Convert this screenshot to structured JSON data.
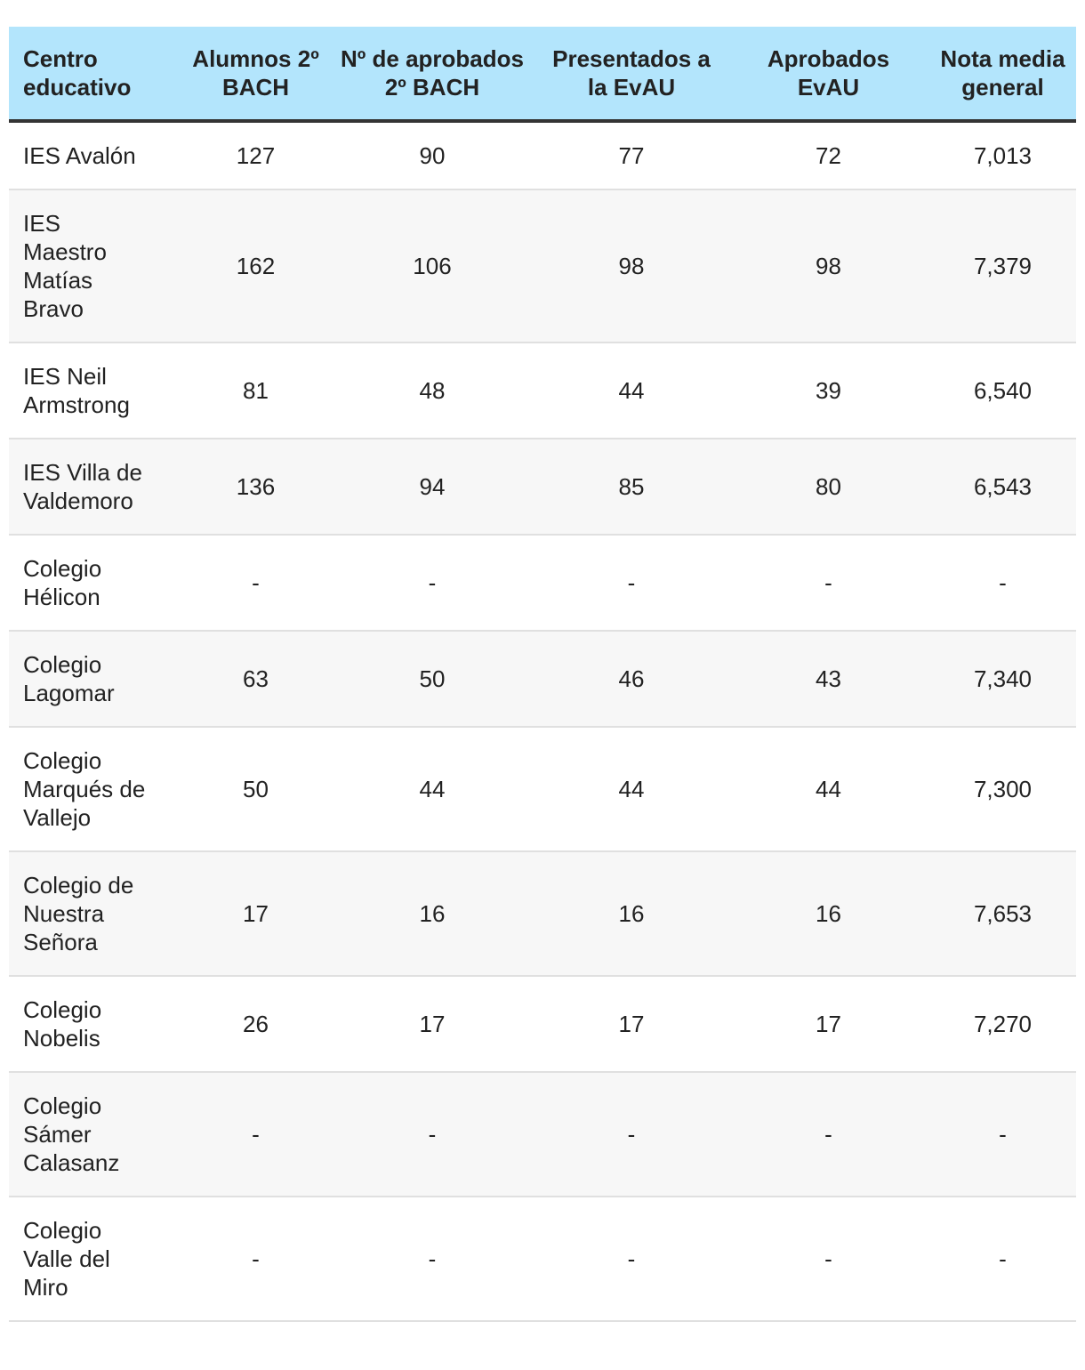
{
  "table": {
    "header": [
      "Centro educativo",
      "Alumnos 2º BACH",
      "Nº de aprobados 2º BACH",
      "Presentados a la EvAU",
      "Aprobados EvAU",
      "Nota media general"
    ],
    "rows": [
      [
        "IES Avalón",
        "127",
        "90",
        "77",
        "72",
        "7,013"
      ],
      [
        "IES Maestro Matías Bravo",
        "162",
        "106",
        "98",
        "98",
        "7,379"
      ],
      [
        "IES Neil Armstrong",
        "81",
        "48",
        "44",
        "39",
        "6,540"
      ],
      [
        "IES Villa de Valdemoro",
        "136",
        "94",
        "85",
        "80",
        "6,543"
      ],
      [
        "Colegio Hélicon",
        "-",
        "-",
        "-",
        "-",
        "-"
      ],
      [
        "Colegio Lagomar",
        "63",
        "50",
        "46",
        "43",
        "7,340"
      ],
      [
        "Colegio Marqués de Vallejo",
        "50",
        "44",
        "44",
        "44",
        "7,300"
      ],
      [
        "Colegio de Nuestra Señora",
        "17",
        "16",
        "16",
        "16",
        "7,653"
      ],
      [
        "Colegio Nobelis",
        "26",
        "17",
        "17",
        "17",
        "7,270"
      ],
      [
        "Colegio Sámer Calasanz",
        "-",
        "-",
        "-",
        "-",
        "-"
      ],
      [
        "Colegio Valle del Miro",
        "-",
        "-",
        "-",
        "-",
        "-"
      ]
    ]
  }
}
